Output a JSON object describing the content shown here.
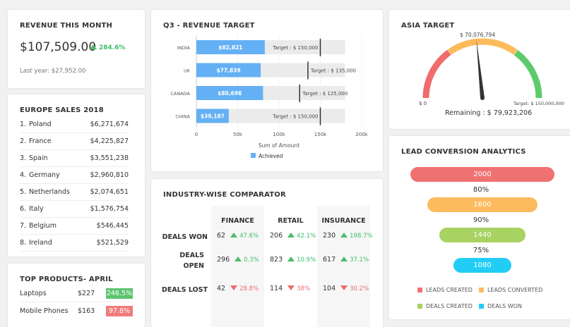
{
  "revenue": {
    "title": "REVENUE THIS MONTH",
    "value": "$107,509.00",
    "change": "284.6%",
    "last_year": "Last year: $27,952.00"
  },
  "europe": {
    "title": "EUROPE SALES 2018",
    "items": [
      {
        "rank": "1.",
        "country": "Poland",
        "value": "$6,271,674"
      },
      {
        "rank": "2.",
        "country": "France",
        "value": "$4,225,827"
      },
      {
        "rank": "3.",
        "country": "Spain",
        "value": "$3,551,238"
      },
      {
        "rank": "4.",
        "country": "Germany",
        "value": "$2,960,810"
      },
      {
        "rank": "5.",
        "country": "Netherlands",
        "value": "$2,074,651"
      },
      {
        "rank": "6.",
        "country": "Italy",
        "value": "$1,576,754"
      },
      {
        "rank": "7.",
        "country": "Belgium",
        "value": "$546,445"
      },
      {
        "rank": "8.",
        "country": "Ireland",
        "value": "$521,529"
      }
    ]
  },
  "products": {
    "title": "TOP PRODUCTS- APRIL",
    "items": [
      {
        "name": "Laptops",
        "price": "$227",
        "change": "246.5%",
        "color": "#5cc46f"
      },
      {
        "name": "Mobile Phones",
        "price": "$163",
        "change": "97.8%",
        "color": "#f07b7b"
      }
    ]
  },
  "chart_data": {
    "type": "bar",
    "title": "Q3 - REVENUE TARGET",
    "categories": [
      "INDIA",
      "UK",
      "CANADA",
      "CHINA"
    ],
    "series": [
      {
        "name": "Achieved",
        "values": [
          82821,
          77839,
          80698,
          39187
        ]
      }
    ],
    "value_labels": [
      "$82,821",
      "$77,839",
      "$80,698",
      "$39,187"
    ],
    "targets": [
      150000,
      135000,
      125000,
      150000
    ],
    "target_labels": [
      "Target : $ 150,000",
      "Target : $ 135,000",
      "Target : $ 125,000",
      "Target : $ 150,000"
    ],
    "xlabel": "Sum of Amount",
    "xlim": [
      0,
      200000
    ],
    "xticks": [
      "0",
      "50k",
      "100k",
      "150k",
      "200k"
    ],
    "legend": "bottom",
    "color": "#64b0f4"
  },
  "industry": {
    "title": "INDUSTRY-WISE COMPARATOR",
    "columns": [
      "FINANCE",
      "RETAIL",
      "INSURANCE"
    ],
    "rows": [
      {
        "label": "DEALS WON",
        "cells": [
          {
            "v": "62",
            "p": "47.6%",
            "dir": "up"
          },
          {
            "v": "206",
            "p": "42.1%",
            "dir": "up"
          },
          {
            "v": "230",
            "p": "198.7%",
            "dir": "up"
          }
        ]
      },
      {
        "label": "DEALS OPEN",
        "cells": [
          {
            "v": "296",
            "p": "0.3%",
            "dir": "up"
          },
          {
            "v": "823",
            "p": "10.9%",
            "dir": "up"
          },
          {
            "v": "617",
            "p": "37.1%",
            "dir": "up"
          }
        ]
      },
      {
        "label": "DEALS LOST",
        "cells": [
          {
            "v": "42",
            "p": "28.8%",
            "dir": "down"
          },
          {
            "v": "114",
            "p": "38%",
            "dir": "down"
          },
          {
            "v": "104",
            "p": "30.2%",
            "dir": "down"
          }
        ]
      }
    ]
  },
  "asia": {
    "title": "ASIA TARGET",
    "value_label": "$ 70,076,794",
    "value": 70076794,
    "max": 150000000,
    "min_label": "$ 0",
    "max_label": "Target: $ 150,000,000",
    "remaining": "Remaining : $ 79,923,206",
    "colors": [
      "#f06b6b",
      "#fdbb5c",
      "#5ecb6a"
    ]
  },
  "lead": {
    "title": "LEAD CONVERSION ANALYTICS",
    "stages": [
      {
        "value": "2000",
        "label": "LEADS CREATED",
        "color": "#f07171"
      },
      {
        "value": "1600",
        "label": "LEADS CONVERTED",
        "color": "#fdbb5f"
      },
      {
        "value": "1440",
        "label": "DEALS CREATED",
        "color": "#a8d262"
      },
      {
        "value": "1080",
        "label": "DEALS WON",
        "color": "#22cdf5"
      }
    ],
    "rates": [
      "80%",
      "90%",
      "75%"
    ]
  }
}
